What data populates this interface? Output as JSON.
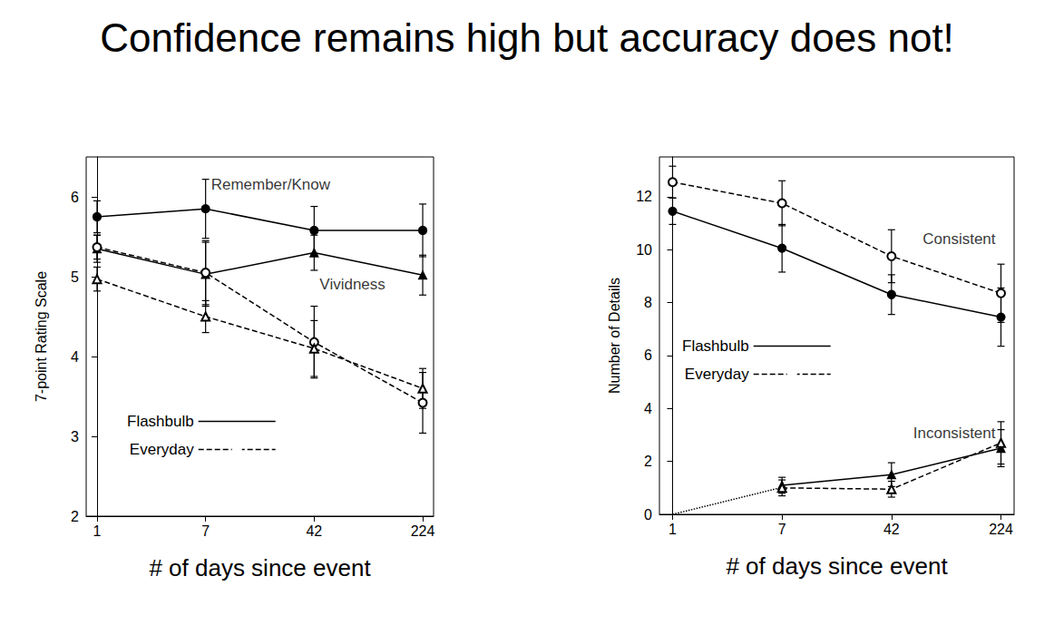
{
  "title": "Confidence remains high but accuracy does not!",
  "chart_data": [
    {
      "type": "line",
      "xlabel": "# of days since event",
      "ylabel": "7-point Rating Scale",
      "categories": [
        "1",
        "7",
        "42",
        "224"
      ],
      "ylim": [
        2,
        6.5
      ],
      "yticks": [
        2,
        3,
        4,
        5,
        6
      ],
      "grid": false,
      "legend": "bottom-left",
      "color": "#000000",
      "annotations": [
        {
          "text": "Remember/Know",
          "x": "7",
          "y": 6.15
        },
        {
          "text": "Vividness",
          "x": "42",
          "y": 4.9
        }
      ],
      "series": [
        {
          "name": "Flashbulb",
          "marker": "circle",
          "line_style": "solid",
          "values": [
            5.75,
            5.85,
            5.58,
            5.58
          ],
          "error": [
            0.2,
            0.37,
            0.3,
            0.33
          ]
        },
        {
          "name": "Flashbulb",
          "marker": "triangle",
          "line_style": "solid",
          "values": [
            5.35,
            5.03,
            5.3,
            5.02
          ],
          "error": [
            0.17,
            0.4,
            0.22,
            0.25
          ]
        },
        {
          "name": "Everyday",
          "marker": "open_circle",
          "line_style": "dashed",
          "values": [
            5.37,
            5.05,
            4.18,
            3.42
          ],
          "error": [
            0.15,
            0.4,
            0.45,
            0.38
          ]
        },
        {
          "name": "Everyday",
          "marker": "open_triangle",
          "line_style": "dashed",
          "values": [
            4.97,
            4.5,
            4.1,
            3.6
          ],
          "error": [
            0.15,
            0.2,
            0.35,
            0.25
          ]
        }
      ]
    },
    {
      "type": "line",
      "xlabel": "# of days since event",
      "ylabel": "Number of Details",
      "categories": [
        "1",
        "7",
        "42",
        "224"
      ],
      "ylim": [
        0,
        13.5
      ],
      "yticks": [
        0,
        2,
        4,
        6,
        8,
        10,
        12
      ],
      "grid": false,
      "legend": "left",
      "color": "#000000",
      "annotations": [
        {
          "text": "Consistent",
          "x": "224",
          "y": 10.4
        },
        {
          "text": "Inconsistent",
          "x": "224",
          "y": 3.05
        }
      ],
      "series": [
        {
          "name": "Flashbulb",
          "marker": "circle",
          "line_style": "solid",
          "values": [
            11.45,
            10.05,
            8.3,
            7.45
          ],
          "error": [
            0.5,
            0.9,
            0.75,
            1.1
          ]
        },
        {
          "name": "Everyday",
          "marker": "open_circle",
          "line_style": "dashed",
          "values": [
            12.55,
            11.75,
            9.75,
            8.35
          ],
          "error": [
            0.6,
            0.85,
            1.0,
            1.1
          ]
        },
        {
          "name": "Flashbulb",
          "marker": "triangle",
          "line_style": "solid",
          "values": [
            null,
            1.1,
            1.5,
            2.5
          ],
          "error": [
            null,
            0.3,
            0.45,
            0.7
          ]
        },
        {
          "name": "Everyday",
          "marker": "open_triangle",
          "line_style": "dashed",
          "values": [
            null,
            1.0,
            0.95,
            2.7
          ],
          "error": [
            null,
            0.3,
            0.3,
            0.8
          ]
        },
        {
          "marker": "none",
          "line_style": "dotted",
          "values": [
            0,
            1.02,
            null,
            null
          ]
        }
      ]
    }
  ]
}
